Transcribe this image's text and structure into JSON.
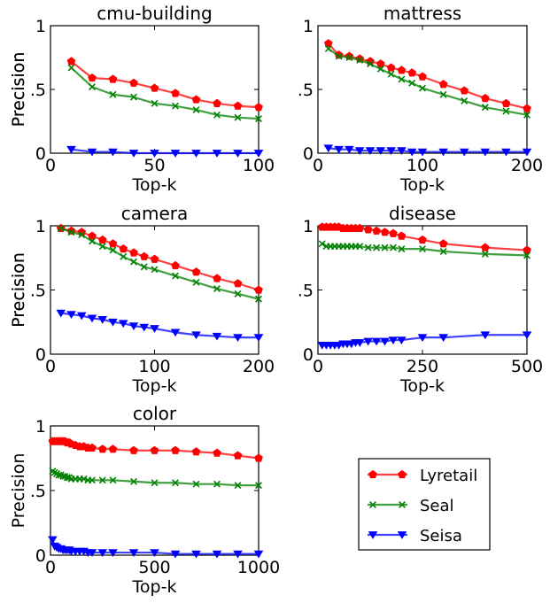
{
  "chart_data": [
    {
      "type": "line",
      "title": "cmu-building",
      "xlabel": "Top-k",
      "ylabel": "Precision",
      "xlim": [
        0,
        100
      ],
      "ylim": [
        0,
        1
      ],
      "xticks": [
        "0",
        "50",
        "100"
      ],
      "yticks": [
        "0",
        ".5",
        "1"
      ],
      "series": [
        {
          "name": "Lyretail",
          "x": [
            10,
            20,
            30,
            40,
            50,
            60,
            70,
            80,
            90,
            100
          ],
          "values": [
            0.72,
            0.59,
            0.58,
            0.55,
            0.51,
            0.47,
            0.42,
            0.39,
            0.37,
            0.36
          ]
        },
        {
          "name": "Seal",
          "x": [
            10,
            20,
            30,
            40,
            50,
            60,
            70,
            80,
            90,
            100
          ],
          "values": [
            0.67,
            0.52,
            0.46,
            0.44,
            0.39,
            0.37,
            0.34,
            0.3,
            0.28,
            0.27
          ]
        },
        {
          "name": "Seisa",
          "x": [
            10,
            20,
            30,
            40,
            50,
            60,
            70,
            80,
            90,
            100
          ],
          "values": [
            0.03,
            0.01,
            0.01,
            0.0,
            0.0,
            0.0,
            0.0,
            0.0,
            0.0,
            0.0
          ]
        }
      ]
    },
    {
      "type": "line",
      "title": "mattress",
      "xlabel": "Top-k",
      "ylabel": "Precision",
      "xlim": [
        0,
        200
      ],
      "ylim": [
        0,
        1
      ],
      "xticks": [
        "0",
        "100",
        "200"
      ],
      "yticks": [
        "0",
        ".5",
        "1"
      ],
      "series": [
        {
          "name": "Lyretail",
          "x": [
            10,
            20,
            30,
            40,
            50,
            60,
            70,
            80,
            90,
            100,
            120,
            140,
            160,
            180,
            200
          ],
          "values": [
            0.86,
            0.77,
            0.76,
            0.74,
            0.72,
            0.7,
            0.67,
            0.65,
            0.63,
            0.6,
            0.54,
            0.49,
            0.43,
            0.39,
            0.35
          ]
        },
        {
          "name": "Seal",
          "x": [
            10,
            20,
            30,
            40,
            50,
            60,
            70,
            80,
            90,
            100,
            120,
            140,
            160,
            180,
            200
          ],
          "values": [
            0.82,
            0.76,
            0.75,
            0.73,
            0.7,
            0.66,
            0.62,
            0.58,
            0.55,
            0.51,
            0.46,
            0.41,
            0.36,
            0.33,
            0.3
          ]
        },
        {
          "name": "Seisa",
          "x": [
            10,
            20,
            30,
            40,
            50,
            60,
            70,
            80,
            90,
            100,
            120,
            140,
            160,
            180,
            200
          ],
          "values": [
            0.04,
            0.03,
            0.03,
            0.02,
            0.02,
            0.02,
            0.02,
            0.02,
            0.01,
            0.01,
            0.01,
            0.01,
            0.01,
            0.01,
            0.01
          ]
        }
      ]
    },
    {
      "type": "line",
      "title": "camera",
      "xlabel": "Top-k",
      "ylabel": "Precision",
      "xlim": [
        0,
        200
      ],
      "ylim": [
        0,
        1
      ],
      "xticks": [
        "0",
        "100",
        "200"
      ],
      "yticks": [
        "0",
        ".5",
        "1"
      ],
      "series": [
        {
          "name": "Lyretail",
          "x": [
            10,
            20,
            30,
            40,
            50,
            60,
            70,
            80,
            90,
            100,
            120,
            140,
            160,
            180,
            200
          ],
          "values": [
            0.98,
            0.96,
            0.95,
            0.92,
            0.89,
            0.86,
            0.82,
            0.79,
            0.76,
            0.74,
            0.69,
            0.64,
            0.59,
            0.55,
            0.5
          ]
        },
        {
          "name": "Seal",
          "x": [
            10,
            20,
            30,
            40,
            50,
            60,
            70,
            80,
            90,
            100,
            120,
            140,
            160,
            180,
            200
          ],
          "values": [
            0.98,
            0.95,
            0.93,
            0.88,
            0.84,
            0.81,
            0.76,
            0.72,
            0.68,
            0.66,
            0.61,
            0.56,
            0.51,
            0.47,
            0.43
          ]
        },
        {
          "name": "Seisa",
          "x": [
            10,
            20,
            30,
            40,
            50,
            60,
            70,
            80,
            90,
            100,
            120,
            140,
            160,
            180,
            200
          ],
          "values": [
            0.32,
            0.31,
            0.3,
            0.28,
            0.27,
            0.25,
            0.24,
            0.22,
            0.21,
            0.2,
            0.17,
            0.15,
            0.14,
            0.13,
            0.13
          ]
        }
      ]
    },
    {
      "type": "line",
      "title": "disease",
      "xlabel": "Top-k",
      "ylabel": "Precision",
      "xlim": [
        0,
        500
      ],
      "ylim": [
        0,
        1
      ],
      "xticks": [
        "0",
        "250",
        "500"
      ],
      "yticks": [
        "0",
        ".5",
        "1"
      ],
      "series": [
        {
          "name": "Lyretail",
          "x": [
            10,
            20,
            30,
            40,
            50,
            60,
            70,
            80,
            90,
            100,
            120,
            140,
            160,
            180,
            200,
            250,
            300,
            400,
            500
          ],
          "values": [
            0.99,
            0.99,
            0.99,
            0.99,
            0.99,
            0.98,
            0.98,
            0.98,
            0.98,
            0.98,
            0.97,
            0.96,
            0.95,
            0.94,
            0.92,
            0.89,
            0.86,
            0.83,
            0.81
          ]
        },
        {
          "name": "Seal",
          "x": [
            10,
            20,
            30,
            40,
            50,
            60,
            70,
            80,
            90,
            100,
            120,
            140,
            160,
            180,
            200,
            250,
            300,
            400,
            500
          ],
          "values": [
            0.86,
            0.84,
            0.84,
            0.84,
            0.84,
            0.84,
            0.84,
            0.84,
            0.84,
            0.84,
            0.83,
            0.83,
            0.83,
            0.83,
            0.82,
            0.82,
            0.8,
            0.78,
            0.77
          ]
        },
        {
          "name": "Seisa",
          "x": [
            10,
            20,
            30,
            40,
            50,
            60,
            70,
            80,
            90,
            100,
            120,
            140,
            160,
            180,
            200,
            250,
            300,
            400,
            500
          ],
          "values": [
            0.07,
            0.07,
            0.07,
            0.07,
            0.07,
            0.08,
            0.08,
            0.08,
            0.09,
            0.09,
            0.1,
            0.1,
            0.1,
            0.11,
            0.11,
            0.13,
            0.13,
            0.15,
            0.15
          ]
        }
      ]
    },
    {
      "type": "line",
      "title": "color",
      "xlabel": "Top-k",
      "ylabel": "Precision",
      "xlim": [
        0,
        1000
      ],
      "ylim": [
        0,
        1
      ],
      "xticks": [
        "0",
        "500",
        "1000"
      ],
      "yticks": [
        "0",
        ".5",
        "1"
      ],
      "series": [
        {
          "name": "Lyretail",
          "x": [
            10,
            20,
            30,
            40,
            50,
            60,
            70,
            80,
            90,
            100,
            120,
            140,
            160,
            180,
            200,
            250,
            300,
            400,
            500,
            600,
            700,
            800,
            900,
            1000
          ],
          "values": [
            0.88,
            0.88,
            0.88,
            0.88,
            0.88,
            0.88,
            0.88,
            0.87,
            0.87,
            0.86,
            0.85,
            0.84,
            0.84,
            0.83,
            0.83,
            0.82,
            0.82,
            0.81,
            0.81,
            0.81,
            0.8,
            0.79,
            0.77,
            0.75
          ]
        },
        {
          "name": "Seal",
          "x": [
            10,
            20,
            30,
            40,
            50,
            60,
            70,
            80,
            90,
            100,
            120,
            140,
            160,
            180,
            200,
            250,
            300,
            400,
            500,
            600,
            700,
            800,
            900,
            1000
          ],
          "values": [
            0.65,
            0.64,
            0.63,
            0.62,
            0.62,
            0.61,
            0.61,
            0.6,
            0.6,
            0.59,
            0.59,
            0.59,
            0.59,
            0.58,
            0.58,
            0.58,
            0.58,
            0.57,
            0.56,
            0.56,
            0.55,
            0.55,
            0.54,
            0.54
          ]
        },
        {
          "name": "Seisa",
          "x": [
            10,
            20,
            30,
            40,
            50,
            60,
            70,
            80,
            90,
            100,
            120,
            140,
            160,
            180,
            200,
            250,
            300,
            400,
            500,
            600,
            700,
            800,
            900,
            1000
          ],
          "values": [
            0.12,
            0.07,
            0.06,
            0.05,
            0.05,
            0.04,
            0.04,
            0.04,
            0.04,
            0.03,
            0.03,
            0.03,
            0.03,
            0.02,
            0.02,
            0.02,
            0.02,
            0.02,
            0.02,
            0.01,
            0.01,
            0.01,
            0.01,
            0.01
          ]
        }
      ]
    }
  ],
  "legend": {
    "placement": "bottom-right",
    "items": [
      {
        "label": "Lyretail",
        "color": "#ff0000",
        "marker": "pentagon"
      },
      {
        "label": "Seal",
        "color": "#008000",
        "marker": "x"
      },
      {
        "label": "Seisa",
        "color": "#0000ff",
        "marker": "triangle-down"
      }
    ]
  }
}
